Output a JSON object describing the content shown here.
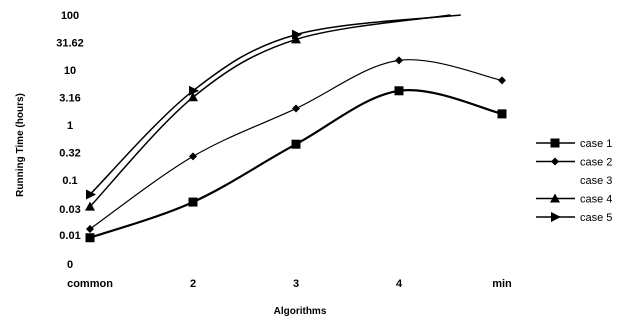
{
  "chart_data": {
    "type": "line",
    "title": "",
    "xlabel": "Algorithms",
    "ylabel": "Running Time (hours)",
    "y_scale": "log",
    "ylim": [
      0.003,
      100
    ],
    "y_ticks": [
      {
        "value": 100,
        "label": "100"
      },
      {
        "value": 31.62,
        "label": "31.62"
      },
      {
        "value": 10,
        "label": "10"
      },
      {
        "value": 3.16,
        "label": "3.16"
      },
      {
        "value": 1,
        "label": "1"
      },
      {
        "value": 0.32,
        "label": "0.32"
      },
      {
        "value": 0.1,
        "label": "0.1"
      },
      {
        "value": 0.03,
        "label": "0.03"
      },
      {
        "value": 0.01,
        "label": "0.01"
      },
      {
        "value": 0.003,
        "label": "0"
      }
    ],
    "categories": [
      "common",
      "2",
      "3",
      "4",
      "min"
    ],
    "legend_position": "right",
    "grid": false,
    "series": [
      {
        "name": "case 1",
        "marker": "square",
        "stroke": 2.2,
        "values": [
          0.009,
          0.04,
          0.45,
          4.2,
          1.6
        ]
      },
      {
        "name": "case 2",
        "marker": "diamond",
        "stroke": 1.2,
        "values": [
          0.013,
          0.27,
          2.0,
          15,
          6.5
        ]
      },
      {
        "name": "case 3",
        "marker": "none",
        "stroke": 1.2,
        "values": [
          null,
          null,
          null,
          null,
          null
        ]
      },
      {
        "name": "case 4",
        "marker": "triangle",
        "stroke": 1.5,
        "values": [
          0.033,
          3.2,
          36,
          null,
          null
        ],
        "extends_to": {
          "x": 3.5,
          "y": 100
        }
      },
      {
        "name": "case 5",
        "marker": "tri-right",
        "stroke": 1.5,
        "values": [
          0.055,
          4.2,
          44,
          null,
          null
        ],
        "extends_to": {
          "x": 3.6,
          "y": 100
        }
      }
    ]
  }
}
